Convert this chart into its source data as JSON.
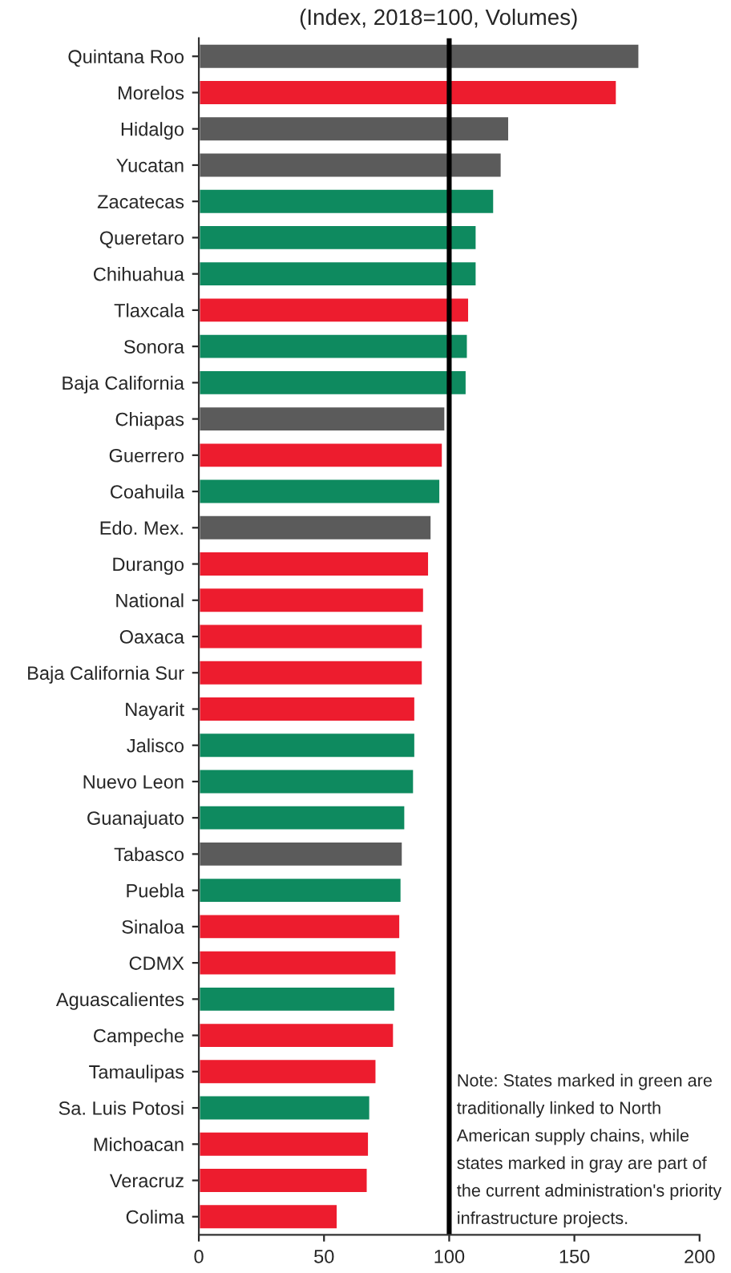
{
  "chart_data": {
    "type": "bar",
    "orientation": "horizontal",
    "title": "(Index, 2018=100, Volumes)",
    "categories": [
      "Quintana Roo",
      "Morelos",
      "Hidalgo",
      "Yucatan",
      "Zacatecas",
      "Queretaro",
      "Chihuahua",
      "Tlaxcala",
      "Sonora",
      "Baja California",
      "Chiapas",
      "Guerrero",
      "Coahuila",
      "Edo. Mex.",
      "Durango",
      "National",
      "Oaxaca",
      "Baja California Sur",
      "Nayarit",
      "Jalisco",
      "Nuevo Leon",
      "Guanajuato",
      "Tabasco",
      "Puebla",
      "Sinaloa",
      "CDMX",
      "Aguascalientes",
      "Campeche",
      "Tamaulipas",
      "Sa. Luis Potosi",
      "Michoacan",
      "Veracruz",
      "Colima"
    ],
    "values": [
      176,
      167,
      124,
      121,
      118,
      111,
      111,
      108,
      107.5,
      107,
      98.5,
      97.5,
      96.5,
      93,
      92,
      90,
      89.5,
      89.5,
      86.5,
      86.5,
      86,
      82.5,
      81.5,
      81,
      80.5,
      79,
      78.5,
      78,
      71,
      68.5,
      68,
      67.5,
      55.5
    ],
    "colors": [
      "#5b5b5b",
      "#ed1c2e",
      "#5b5b5b",
      "#5b5b5b",
      "#0e8a5f",
      "#0e8a5f",
      "#0e8a5f",
      "#ed1c2e",
      "#0e8a5f",
      "#0e8a5f",
      "#5b5b5b",
      "#ed1c2e",
      "#0e8a5f",
      "#5b5b5b",
      "#ed1c2e",
      "#ed1c2e",
      "#ed1c2e",
      "#ed1c2e",
      "#ed1c2e",
      "#0e8a5f",
      "#0e8a5f",
      "#0e8a5f",
      "#5b5b5b",
      "#0e8a5f",
      "#ed1c2e",
      "#ed1c2e",
      "#0e8a5f",
      "#ed1c2e",
      "#ed1c2e",
      "#0e8a5f",
      "#ed1c2e",
      "#ed1c2e",
      "#ed1c2e"
    ],
    "xlim": [
      0,
      200
    ],
    "xticks": [
      0,
      50,
      100,
      150,
      200
    ],
    "ref_lines": [
      {
        "axis": "x",
        "value": 100,
        "color": "#000000"
      }
    ],
    "annotations": [
      "Note: States marked in green are traditionally linked to North American supply chains, while states marked in gray are part of the current administration's priority infrastructure projects."
    ],
    "grid": false,
    "legend": false
  }
}
